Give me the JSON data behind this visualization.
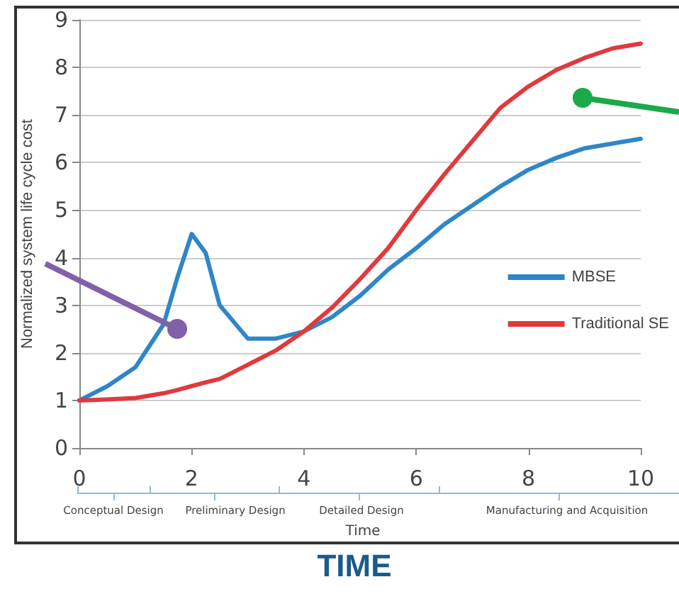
{
  "chart_data": {
    "type": "line",
    "xlabel": "Time",
    "ylabel": "Normalized system life cycle cost",
    "xlim": [
      0,
      10
    ],
    "xticks": [
      0,
      2,
      4,
      6,
      8,
      10
    ],
    "ylim": [
      0,
      9
    ],
    "yticks": [
      0,
      1,
      2,
      3,
      4,
      5,
      6,
      7,
      8,
      9
    ],
    "grid": "y",
    "legend": "right",
    "marker": "none",
    "line_style": "solid",
    "series": [
      {
        "name": "MBSE",
        "color": "#2e86c8",
        "x": [
          0,
          0.5,
          1,
          1.5,
          1.75,
          2,
          2.25,
          2.5,
          3,
          3.5,
          4,
          4.5,
          5,
          5.5,
          6,
          6.5,
          7,
          7.5,
          8,
          8.5,
          9,
          9.5,
          10
        ],
        "values": [
          1.0,
          1.3,
          1.7,
          2.6,
          3.6,
          4.5,
          4.1,
          3.0,
          2.3,
          2.3,
          2.45,
          2.75,
          3.2,
          3.75,
          4.2,
          4.7,
          5.1,
          5.5,
          5.85,
          6.1,
          6.3,
          6.4,
          6.5
        ]
      },
      {
        "name": "Traditional SE",
        "color": "#e0393e",
        "x": [
          0,
          0.5,
          1,
          1.5,
          1.75,
          2,
          2.25,
          2.5,
          3,
          3.5,
          4,
          4.5,
          5,
          5.5,
          6,
          6.5,
          7,
          7.5,
          8,
          8.5,
          9,
          9.5,
          10
        ],
        "values": [
          1.0,
          1.02,
          1.05,
          1.15,
          1.22,
          1.3,
          1.38,
          1.45,
          1.75,
          2.05,
          2.45,
          2.95,
          3.55,
          4.2,
          5.0,
          5.75,
          6.45,
          7.15,
          7.6,
          7.95,
          8.2,
          8.4,
          8.5
        ]
      }
    ],
    "annotations": [
      "Conceptual Design",
      "Preliminary Design",
      "Detailed Design",
      "Manufacturing and Acquisition",
      "TIME"
    ]
  }
}
